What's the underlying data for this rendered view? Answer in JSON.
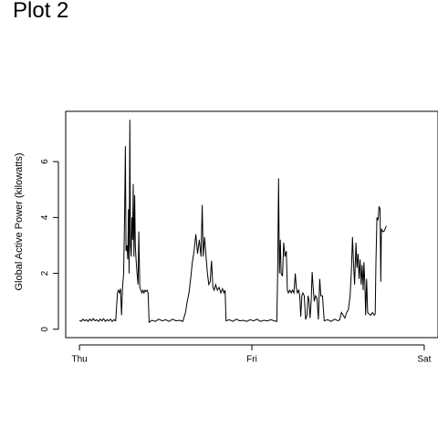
{
  "page": {
    "heading": "Plot 2"
  },
  "chart_data": {
    "type": "line",
    "title": "",
    "xlabel": "",
    "ylabel": "Global Active Power (kilowatts)",
    "x_unit": "days since Thursday 00:00",
    "xlim": [
      -0.08,
      2.08
    ],
    "ylim": [
      -0.3,
      7.8
    ],
    "x_ticks": [
      {
        "value": 0,
        "label": "Thu"
      },
      {
        "value": 1,
        "label": "Fri"
      },
      {
        "value": 2,
        "label": "Sat"
      }
    ],
    "y_ticks": [
      {
        "value": 0,
        "label": "0"
      },
      {
        "value": 2,
        "label": "2"
      },
      {
        "value": 4,
        "label": "4"
      },
      {
        "value": 6,
        "label": "6"
      }
    ],
    "grid": false,
    "legend": "none",
    "series": [
      {
        "color": "#000000",
        "points": [
          [
            0.0,
            0.32
          ],
          [
            0.01,
            0.28
          ],
          [
            0.02,
            0.36
          ],
          [
            0.03,
            0.3
          ],
          [
            0.04,
            0.34
          ],
          [
            0.05,
            0.28
          ],
          [
            0.06,
            0.36
          ],
          [
            0.07,
            0.3
          ],
          [
            0.08,
            0.38
          ],
          [
            0.09,
            0.3
          ],
          [
            0.1,
            0.34
          ],
          [
            0.11,
            0.28
          ],
          [
            0.12,
            0.36
          ],
          [
            0.13,
            0.3
          ],
          [
            0.14,
            0.38
          ],
          [
            0.15,
            0.28
          ],
          [
            0.16,
            0.34
          ],
          [
            0.17,
            0.3
          ],
          [
            0.18,
            0.36
          ],
          [
            0.19,
            0.28
          ],
          [
            0.2,
            0.34
          ],
          [
            0.21,
            0.3
          ],
          [
            0.22,
            1.3
          ],
          [
            0.226,
            1.4
          ],
          [
            0.232,
            1.3
          ],
          [
            0.238,
            1.45
          ],
          [
            0.244,
            0.5
          ],
          [
            0.25,
            1.5
          ],
          [
            0.256,
            2.0
          ],
          [
            0.262,
            4.2
          ],
          [
            0.266,
            6.55
          ],
          [
            0.27,
            2.8
          ],
          [
            0.276,
            3.0
          ],
          [
            0.28,
            2.5
          ],
          [
            0.284,
            4.3
          ],
          [
            0.288,
            2.0
          ],
          [
            0.292,
            7.5
          ],
          [
            0.296,
            3.0
          ],
          [
            0.3,
            2.6
          ],
          [
            0.304,
            4.0
          ],
          [
            0.308,
            3.2
          ],
          [
            0.312,
            5.2
          ],
          [
            0.316,
            2.6
          ],
          [
            0.32,
            4.8
          ],
          [
            0.324,
            3.0
          ],
          [
            0.328,
            2.5
          ],
          [
            0.334,
            2.0
          ],
          [
            0.34,
            1.6
          ],
          [
            0.344,
            3.5
          ],
          [
            0.35,
            1.5
          ],
          [
            0.356,
            1.4
          ],
          [
            0.362,
            1.3
          ],
          [
            0.368,
            1.4
          ],
          [
            0.374,
            1.3
          ],
          [
            0.38,
            1.4
          ],
          [
            0.386,
            1.35
          ],
          [
            0.392,
            1.4
          ],
          [
            0.398,
            1.3
          ],
          [
            0.404,
            0.25
          ],
          [
            0.42,
            0.32
          ],
          [
            0.44,
            0.28
          ],
          [
            0.46,
            0.36
          ],
          [
            0.48,
            0.3
          ],
          [
            0.5,
            0.34
          ],
          [
            0.52,
            0.28
          ],
          [
            0.54,
            0.36
          ],
          [
            0.56,
            0.3
          ],
          [
            0.58,
            0.32
          ],
          [
            0.6,
            0.28
          ],
          [
            0.615,
            0.6
          ],
          [
            0.625,
            1.0
          ],
          [
            0.635,
            1.3
          ],
          [
            0.645,
            1.8
          ],
          [
            0.655,
            2.4
          ],
          [
            0.665,
            2.8
          ],
          [
            0.675,
            3.4
          ],
          [
            0.685,
            2.7
          ],
          [
            0.695,
            3.2
          ],
          [
            0.705,
            2.6
          ],
          [
            0.712,
            4.45
          ],
          [
            0.718,
            2.6
          ],
          [
            0.726,
            3.3
          ],
          [
            0.734,
            2.6
          ],
          [
            0.742,
            2.0
          ],
          [
            0.75,
            1.6
          ],
          [
            0.758,
            1.7
          ],
          [
            0.766,
            2.45
          ],
          [
            0.774,
            1.5
          ],
          [
            0.782,
            1.4
          ],
          [
            0.79,
            1.6
          ],
          [
            0.8,
            1.4
          ],
          [
            0.81,
            1.5
          ],
          [
            0.82,
            1.3
          ],
          [
            0.83,
            1.45
          ],
          [
            0.838,
            1.3
          ],
          [
            0.845,
            1.4
          ],
          [
            0.85,
            0.3
          ],
          [
            0.87,
            0.34
          ],
          [
            0.89,
            0.28
          ],
          [
            0.91,
            0.36
          ],
          [
            0.93,
            0.3
          ],
          [
            0.95,
            0.32
          ],
          [
            0.97,
            0.28
          ],
          [
            0.99,
            0.34
          ],
          [
            1.01,
            0.3
          ],
          [
            1.03,
            0.36
          ],
          [
            1.05,
            0.28
          ],
          [
            1.07,
            0.32
          ],
          [
            1.09,
            0.3
          ],
          [
            1.11,
            0.34
          ],
          [
            1.13,
            0.3
          ],
          [
            1.145,
            0.28
          ],
          [
            1.15,
            2.1
          ],
          [
            1.155,
            5.4
          ],
          [
            1.16,
            2.0
          ],
          [
            1.165,
            3.2
          ],
          [
            1.17,
            2.0
          ],
          [
            1.178,
            1.9
          ],
          [
            1.185,
            3.1
          ],
          [
            1.192,
            2.6
          ],
          [
            1.2,
            2.8
          ],
          [
            1.206,
            1.4
          ],
          [
            1.212,
            1.3
          ],
          [
            1.22,
            1.4
          ],
          [
            1.228,
            1.3
          ],
          [
            1.236,
            1.4
          ],
          [
            1.244,
            1.3
          ],
          [
            1.252,
            2.0
          ],
          [
            1.258,
            1.5
          ],
          [
            1.264,
            1.3
          ],
          [
            1.272,
            1.4
          ],
          [
            1.278,
            1.2
          ],
          [
            1.284,
            0.45
          ],
          [
            1.29,
            1.2
          ],
          [
            1.296,
            1.3
          ],
          [
            1.304,
            1.2
          ],
          [
            1.312,
            0.35
          ],
          [
            1.32,
            0.5
          ],
          [
            1.326,
            1.2
          ],
          [
            1.332,
            1.0
          ],
          [
            1.338,
            0.4
          ],
          [
            1.344,
            1.0
          ],
          [
            1.35,
            2.05
          ],
          [
            1.356,
            1.5
          ],
          [
            1.362,
            1.0
          ],
          [
            1.37,
            1.2
          ],
          [
            1.378,
            1.1
          ],
          [
            1.386,
            0.35
          ],
          [
            1.394,
            1.8
          ],
          [
            1.4,
            1.2
          ],
          [
            1.41,
            1.2
          ],
          [
            1.42,
            0.3
          ],
          [
            1.44,
            0.34
          ],
          [
            1.46,
            0.28
          ],
          [
            1.48,
            0.36
          ],
          [
            1.5,
            0.3
          ],
          [
            1.51,
            0.34
          ],
          [
            1.52,
            0.6
          ],
          [
            1.53,
            0.5
          ],
          [
            1.54,
            0.4
          ],
          [
            1.55,
            0.6
          ],
          [
            1.56,
            0.7
          ],
          [
            1.57,
            1.2
          ],
          [
            1.578,
            2.2
          ],
          [
            1.584,
            3.3
          ],
          [
            1.59,
            2.4
          ],
          [
            1.596,
            1.6
          ],
          [
            1.604,
            3.1
          ],
          [
            1.61,
            2.2
          ],
          [
            1.616,
            2.7
          ],
          [
            1.622,
            1.8
          ],
          [
            1.628,
            2.5
          ],
          [
            1.634,
            1.6
          ],
          [
            1.64,
            2.3
          ],
          [
            1.646,
            1.4
          ],
          [
            1.65,
            2.4
          ],
          [
            1.656,
            1.6
          ],
          [
            1.66,
            0.5
          ],
          [
            1.666,
            1.8
          ],
          [
            1.672,
            0.6
          ],
          [
            1.68,
            0.55
          ],
          [
            1.69,
            0.5
          ],
          [
            1.7,
            0.6
          ],
          [
            1.71,
            0.5
          ],
          [
            1.716,
            0.55
          ],
          [
            1.72,
            2.4
          ],
          [
            1.726,
            4.0
          ],
          [
            1.732,
            3.9
          ],
          [
            1.738,
            4.4
          ],
          [
            1.744,
            4.3
          ],
          [
            1.748,
            1.7
          ],
          [
            1.752,
            3.6
          ],
          [
            1.758,
            3.5
          ],
          [
            1.766,
            3.5
          ],
          [
            1.774,
            3.6
          ],
          [
            1.78,
            3.7
          ]
        ]
      }
    ]
  }
}
